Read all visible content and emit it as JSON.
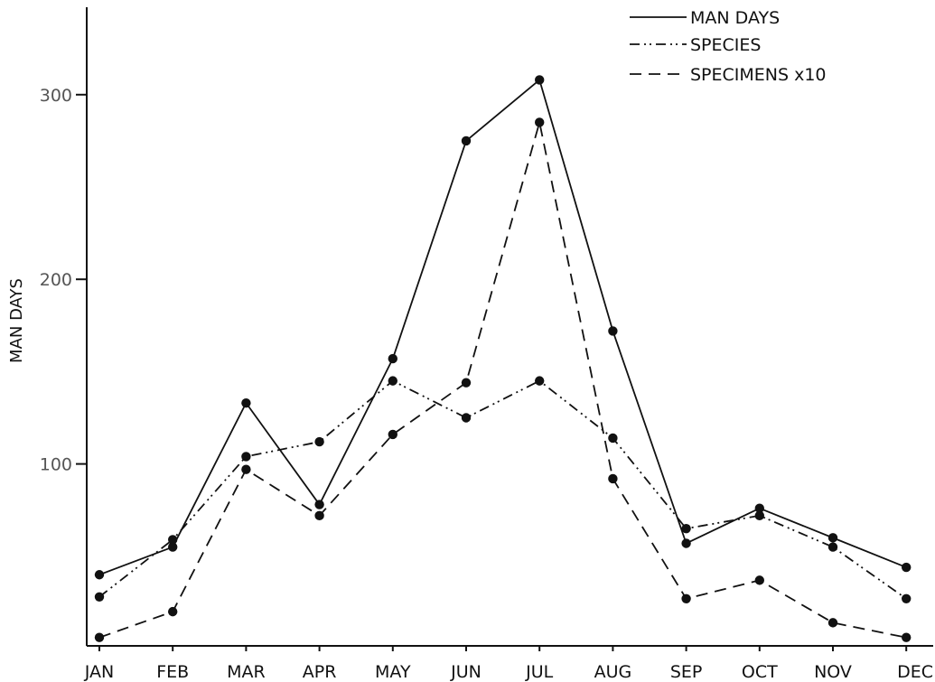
{
  "chart_data": {
    "type": "line",
    "title": "",
    "xlabel": "",
    "ylabel": "MAN DAYS",
    "categories": [
      "JAN",
      "FEB",
      "MAR",
      "APR",
      "MAY",
      "JUN",
      "JUL",
      "AUG",
      "SEP",
      "OCT",
      "NOV",
      "DEC"
    ],
    "yticks": [
      "100",
      "200",
      "300"
    ],
    "ylim": [
      0,
      350
    ],
    "grid": false,
    "legend_position": "top-right",
    "series": [
      {
        "name": "MAN DAYS",
        "style": "solid",
        "values": [
          40,
          55,
          133,
          78,
          157,
          275,
          308,
          172,
          57,
          76,
          60,
          44
        ]
      },
      {
        "name": "SPECIES",
        "style": "dash-dot-dot",
        "values": [
          28,
          59,
          104,
          112,
          145,
          125,
          145,
          114,
          65,
          72,
          55,
          27
        ]
      },
      {
        "name": "SPECIMENS x10",
        "style": "dashed",
        "values": [
          6,
          20,
          97,
          72,
          116,
          144,
          285,
          92,
          27,
          37,
          14,
          6
        ]
      }
    ]
  }
}
